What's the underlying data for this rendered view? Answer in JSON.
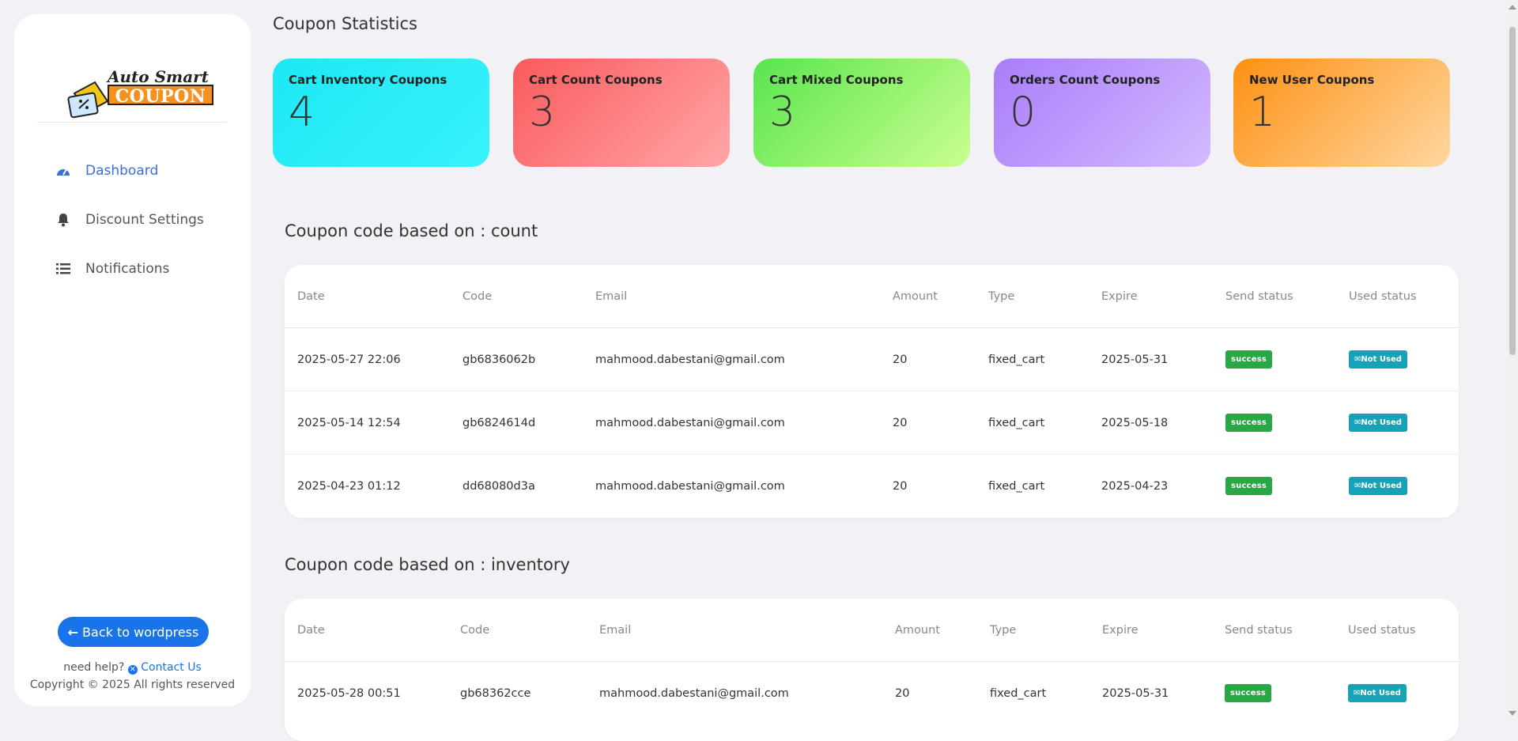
{
  "sidebar": {
    "logo": {
      "line1": "Auto Smart",
      "line2": "COUPON"
    },
    "nav": [
      {
        "label": "Dashboard",
        "icon": "dashboard-gauge-icon",
        "active": true
      },
      {
        "label": "Discount Settings",
        "icon": "bell-icon",
        "active": false
      },
      {
        "label": "Notifications",
        "icon": "list-icon",
        "active": false
      }
    ],
    "back_button": "Back to wordpress",
    "help_text": "need help?",
    "contact_link": "Contact Us",
    "copyright": "Copyright © 2025 All rights reserved"
  },
  "page_title": "Coupon Statistics",
  "stats": [
    {
      "label": "Cart Inventory Coupons",
      "value": "4",
      "color": "#1de8f6"
    },
    {
      "label": "Cart Count Coupons",
      "value": "3",
      "color": "#fb5a5c"
    },
    {
      "label": "Cart Mixed Coupons",
      "value": "3",
      "color": "#5ae54f"
    },
    {
      "label": "Orders Count Coupons",
      "value": "0",
      "color": "#a97dfa"
    },
    {
      "label": "New User Coupons",
      "value": "1",
      "color": "#fd9012"
    }
  ],
  "table_headers": [
    "Date",
    "Code",
    "Email",
    "Amount",
    "Type",
    "Expire",
    "Send status",
    "Used status"
  ],
  "sections": [
    {
      "title": "Coupon code based on : count",
      "rows": [
        {
          "date": "2025-05-27 22:06",
          "code": "gb6836062b",
          "email": "mahmood.dabestani@gmail.com",
          "amount": "20",
          "type": "fixed_cart",
          "expire": "2025-05-31",
          "send_status": "success",
          "used_status": "Not Used"
        },
        {
          "date": "2025-05-14 12:54",
          "code": "gb6824614d",
          "email": "mahmood.dabestani@gmail.com",
          "amount": "20",
          "type": "fixed_cart",
          "expire": "2025-05-18",
          "send_status": "success",
          "used_status": "Not Used"
        },
        {
          "date": "2025-04-23 01:12",
          "code": "dd68080d3a",
          "email": "mahmood.dabestani@gmail.com",
          "amount": "20",
          "type": "fixed_cart",
          "expire": "2025-04-23",
          "send_status": "success",
          "used_status": "Not Used"
        }
      ]
    },
    {
      "title": "Coupon code based on : inventory",
      "rows": [
        {
          "date": "2025-05-28 00:51",
          "code": "gb68362cce",
          "email": "mahmood.dabestani@gmail.com",
          "amount": "20",
          "type": "fixed_cart",
          "expire": "2025-05-31",
          "send_status": "success",
          "used_status": "Not Used"
        }
      ]
    }
  ],
  "colors": {
    "accent": "#1a73e8",
    "nav_active": "#3a6fd8",
    "success": "#28a745",
    "not_used": "#17a2b8",
    "background": "#f1f1f6"
  }
}
